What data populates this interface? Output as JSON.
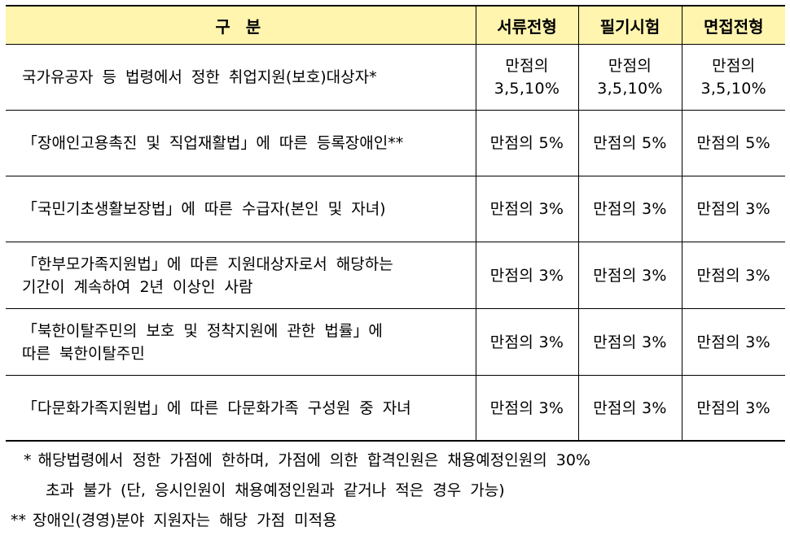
{
  "table": {
    "headers": {
      "category": "구 분",
      "document": "서류전형",
      "written": "필기시험",
      "interview": "면접전형"
    },
    "rows": [
      {
        "category": "국가유공자 등 법령에서 정한 취업지원(보호)대상자*",
        "document_line1": "만점의",
        "document_line2": "3,5,10%",
        "written_line1": "만점의",
        "written_line2": "3,5,10%",
        "interview_line1": "만점의",
        "interview_line2": "3,5,10%"
      },
      {
        "category": "「장애인고용촉진 및 직업재활법」에 따른 등록장애인**",
        "document": "만점의 5%",
        "written": "만점의 5%",
        "interview": "만점의 5%"
      },
      {
        "category": "「국민기초생활보장법」에 따른 수급자(본인 및 자녀)",
        "document": "만점의 3%",
        "written": "만점의 3%",
        "interview": "만점의 3%"
      },
      {
        "category_line1": "「한부모가족지원법」에 따른 지원대상자로서 해당하는",
        "category_line2": "기간이 계속하여 2년 이상인 사람",
        "document": "만점의 3%",
        "written": "만점의 3%",
        "interview": "만점의 3%"
      },
      {
        "category_line1": "「북한이탈주민의 보호 및 정착지원에 관한 법률」에",
        "category_line2": "따른 북한이탈주민",
        "document": "만점의 3%",
        "written": "만점의 3%",
        "interview": "만점의 3%"
      },
      {
        "category": "「다문화가족지원법」에 따른 다문화가족 구성원 중 자녀",
        "document": "만점의 3%",
        "written": "만점의 3%",
        "interview": "만점의 3%"
      }
    ]
  },
  "footnotes": {
    "note1_mark": "*",
    "note1_line1": "해당법령에서 정한 가점에 한하며, 가점에 의한 합격인원은 채용예정인원의 30%",
    "note1_line2": "초과 불가 (단, 응시인원이 채용예정인원과 같거나 적은 경우 가능)",
    "note2_mark": "**",
    "note2_text": "장애인(경영)분야 지원자는 해당 가점 미적용"
  },
  "colors": {
    "header_background": "#fff5ae",
    "border": "#000000"
  }
}
